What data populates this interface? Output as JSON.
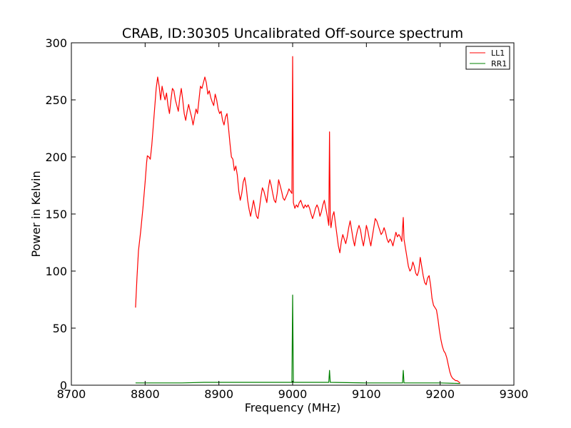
{
  "chart_data": {
    "type": "line",
    "title": "CRAB, ID:30305 Uncalibrated Off-source spectrum",
    "xlabel": "Frequency (MHz)",
    "ylabel": "Power in Kelvin",
    "xlim": [
      8700,
      9300
    ],
    "ylim": [
      0,
      300
    ],
    "xticks": [
      "8700",
      "8800",
      "8900",
      "9000",
      "9100",
      "9200",
      "9300"
    ],
    "yticks": [
      "0",
      "50",
      "100",
      "150",
      "200",
      "250",
      "300"
    ],
    "legend_position": "top-right",
    "grid": false,
    "series": [
      {
        "name": "LL1",
        "color": "#ff0000",
        "points": [
          [
            8787,
            68
          ],
          [
            8789,
            95
          ],
          [
            8791,
            118
          ],
          [
            8794,
            135
          ],
          [
            8797,
            155
          ],
          [
            8800,
            178
          ],
          [
            8802,
            195
          ],
          [
            8803,
            201
          ],
          [
            8805,
            200
          ],
          [
            8807,
            198
          ],
          [
            8809,
            210
          ],
          [
            8812,
            235
          ],
          [
            8815,
            260
          ],
          [
            8817,
            270
          ],
          [
            8819,
            262
          ],
          [
            8821,
            250
          ],
          [
            8823,
            262
          ],
          [
            8825,
            255
          ],
          [
            8827,
            250
          ],
          [
            8829,
            256
          ],
          [
            8831,
            245
          ],
          [
            8833,
            238
          ],
          [
            8835,
            250
          ],
          [
            8837,
            260
          ],
          [
            8839,
            258
          ],
          [
            8841,
            250
          ],
          [
            8843,
            245
          ],
          [
            8845,
            240
          ],
          [
            8847,
            252
          ],
          [
            8849,
            260
          ],
          [
            8851,
            250
          ],
          [
            8853,
            238
          ],
          [
            8855,
            232
          ],
          [
            8857,
            240
          ],
          [
            8859,
            246
          ],
          [
            8861,
            240
          ],
          [
            8863,
            235
          ],
          [
            8865,
            228
          ],
          [
            8867,
            235
          ],
          [
            8869,
            242
          ],
          [
            8871,
            238
          ],
          [
            8873,
            250
          ],
          [
            8875,
            262
          ],
          [
            8877,
            260
          ],
          [
            8879,
            265
          ],
          [
            8881,
            270
          ],
          [
            8883,
            265
          ],
          [
            8885,
            255
          ],
          [
            8887,
            258
          ],
          [
            8889,
            252
          ],
          [
            8891,
            248
          ],
          [
            8893,
            245
          ],
          [
            8895,
            255
          ],
          [
            8897,
            250
          ],
          [
            8899,
            242
          ],
          [
            8901,
            238
          ],
          [
            8903,
            240
          ],
          [
            8905,
            232
          ],
          [
            8907,
            228
          ],
          [
            8909,
            235
          ],
          [
            8911,
            238
          ],
          [
            8913,
            226
          ],
          [
            8915,
            212
          ],
          [
            8917,
            200
          ],
          [
            8919,
            198
          ],
          [
            8921,
            188
          ],
          [
            8923,
            192
          ],
          [
            8925,
            184
          ],
          [
            8927,
            170
          ],
          [
            8929,
            162
          ],
          [
            8931,
            168
          ],
          [
            8933,
            178
          ],
          [
            8935,
            182
          ],
          [
            8937,
            174
          ],
          [
            8939,
            162
          ],
          [
            8941,
            154
          ],
          [
            8943,
            148
          ],
          [
            8945,
            155
          ],
          [
            8947,
            162
          ],
          [
            8949,
            155
          ],
          [
            8951,
            148
          ],
          [
            8953,
            146
          ],
          [
            8955,
            155
          ],
          [
            8957,
            165
          ],
          [
            8959,
            173
          ],
          [
            8961,
            170
          ],
          [
            8963,
            165
          ],
          [
            8965,
            160
          ],
          [
            8967,
            172
          ],
          [
            8969,
            180
          ],
          [
            8971,
            175
          ],
          [
            8973,
            168
          ],
          [
            8975,
            162
          ],
          [
            8977,
            160
          ],
          [
            8979,
            168
          ],
          [
            8981,
            180
          ],
          [
            8983,
            175
          ],
          [
            8985,
            170
          ],
          [
            8987,
            164
          ],
          [
            8989,
            162
          ],
          [
            8991,
            165
          ],
          [
            8993,
            168
          ],
          [
            8995,
            172
          ],
          [
            8997,
            170
          ],
          [
            8999,
            168
          ],
          [
            9000,
            288
          ],
          [
            9001,
            160
          ],
          [
            9003,
            155
          ],
          [
            9005,
            158
          ],
          [
            9007,
            156
          ],
          [
            9009,
            160
          ],
          [
            9011,
            162
          ],
          [
            9013,
            158
          ],
          [
            9015,
            155
          ],
          [
            9017,
            158
          ],
          [
            9019,
            156
          ],
          [
            9021,
            158
          ],
          [
            9023,
            155
          ],
          [
            9025,
            150
          ],
          [
            9027,
            146
          ],
          [
            9029,
            150
          ],
          [
            9031,
            155
          ],
          [
            9033,
            158
          ],
          [
            9035,
            155
          ],
          [
            9037,
            148
          ],
          [
            9039,
            152
          ],
          [
            9041,
            158
          ],
          [
            9043,
            162
          ],
          [
            9045,
            155
          ],
          [
            9047,
            148
          ],
          [
            9049,
            140
          ],
          [
            9050,
            222
          ],
          [
            9051,
            145
          ],
          [
            9052,
            138
          ],
          [
            9054,
            148
          ],
          [
            9056,
            152
          ],
          [
            9058,
            142
          ],
          [
            9060,
            132
          ],
          [
            9062,
            122
          ],
          [
            9064,
            116
          ],
          [
            9066,
            126
          ],
          [
            9068,
            132
          ],
          [
            9070,
            128
          ],
          [
            9072,
            124
          ],
          [
            9074,
            130
          ],
          [
            9076,
            138
          ],
          [
            9078,
            144
          ],
          [
            9080,
            136
          ],
          [
            9082,
            128
          ],
          [
            9084,
            122
          ],
          [
            9086,
            130
          ],
          [
            9088,
            136
          ],
          [
            9090,
            140
          ],
          [
            9092,
            136
          ],
          [
            9094,
            128
          ],
          [
            9096,
            122
          ],
          [
            9098,
            130
          ],
          [
            9100,
            140
          ],
          [
            9102,
            135
          ],
          [
            9104,
            128
          ],
          [
            9106,
            122
          ],
          [
            9108,
            130
          ],
          [
            9110,
            138
          ],
          [
            9112,
            146
          ],
          [
            9114,
            144
          ],
          [
            9116,
            140
          ],
          [
            9118,
            136
          ],
          [
            9120,
            132
          ],
          [
            9122,
            134
          ],
          [
            9124,
            138
          ],
          [
            9126,
            134
          ],
          [
            9128,
            128
          ],
          [
            9130,
            125
          ],
          [
            9132,
            128
          ],
          [
            9134,
            126
          ],
          [
            9136,
            122
          ],
          [
            9138,
            128
          ],
          [
            9140,
            134
          ],
          [
            9142,
            130
          ],
          [
            9144,
            132
          ],
          [
            9146,
            130
          ],
          [
            9148,
            126
          ],
          [
            9150,
            147
          ],
          [
            9151,
            128
          ],
          [
            9153,
            120
          ],
          [
            9155,
            112
          ],
          [
            9157,
            104
          ],
          [
            9159,
            100
          ],
          [
            9161,
            102
          ],
          [
            9163,
            108
          ],
          [
            9165,
            104
          ],
          [
            9167,
            98
          ],
          [
            9169,
            96
          ],
          [
            9171,
            100
          ],
          [
            9173,
            112
          ],
          [
            9175,
            104
          ],
          [
            9177,
            96
          ],
          [
            9179,
            90
          ],
          [
            9181,
            88
          ],
          [
            9183,
            94
          ],
          [
            9185,
            96
          ],
          [
            9187,
            88
          ],
          [
            9189,
            76
          ],
          [
            9191,
            70
          ],
          [
            9193,
            68
          ],
          [
            9195,
            66
          ],
          [
            9197,
            58
          ],
          [
            9199,
            48
          ],
          [
            9201,
            40
          ],
          [
            9203,
            34
          ],
          [
            9205,
            30
          ],
          [
            9207,
            28
          ],
          [
            9209,
            24
          ],
          [
            9211,
            18
          ],
          [
            9213,
            12
          ],
          [
            9215,
            8
          ],
          [
            9217,
            6
          ],
          [
            9219,
            5
          ],
          [
            9221,
            4
          ],
          [
            9223,
            4
          ],
          [
            9225,
            3
          ],
          [
            9227,
            2
          ]
        ]
      },
      {
        "name": "RR1",
        "color": "#008000",
        "points": [
          [
            8787,
            2
          ],
          [
            8820,
            2
          ],
          [
            8850,
            2
          ],
          [
            8880,
            2.5
          ],
          [
            8920,
            2.5
          ],
          [
            8960,
            2.5
          ],
          [
            8998,
            2.5
          ],
          [
            8999,
            2.5
          ],
          [
            9000,
            79
          ],
          [
            9001,
            2.5
          ],
          [
            9040,
            2.5
          ],
          [
            9049,
            2.5
          ],
          [
            9050,
            13
          ],
          [
            9051,
            2.5
          ],
          [
            9100,
            2
          ],
          [
            9149,
            2
          ],
          [
            9150,
            13
          ],
          [
            9151,
            2
          ],
          [
            9200,
            2
          ],
          [
            9227,
            1.5
          ]
        ]
      }
    ]
  }
}
